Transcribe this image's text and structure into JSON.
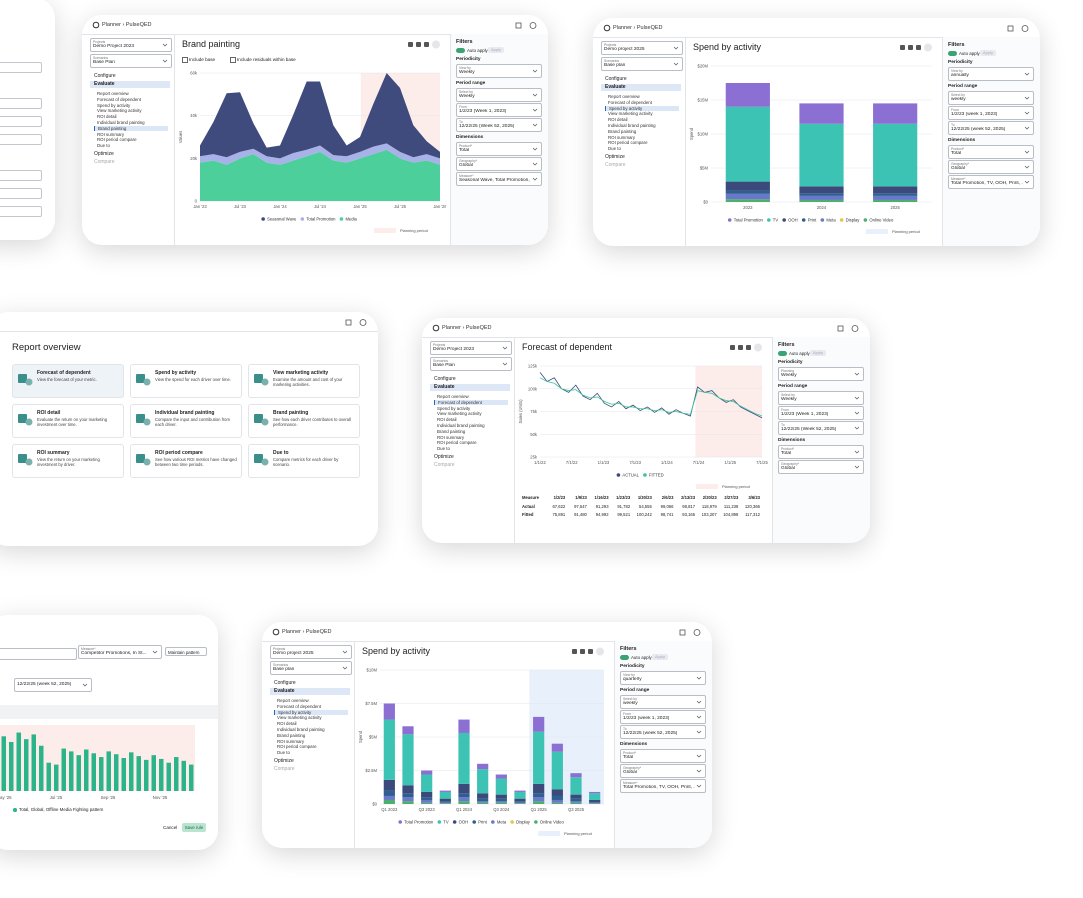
{
  "breadcrumb": "Planner › PulseQED",
  "labels": {
    "projects": "Projects",
    "scenarios": "Scenarios",
    "configure": "Configure",
    "evaluate": "Evaluate",
    "optimize": "Optimize",
    "compare": "Compare",
    "filters": "Filters",
    "auto_apply": "Auto apply",
    "apply": "Apply",
    "periodicity": "Periodicity",
    "period_range": "Period range",
    "select_by": "Select by",
    "from": "From",
    "to": "To",
    "dimensions": "Dimensions",
    "product": "Product*",
    "geography": "Geography*",
    "measure": "Measure*",
    "planning_period": "Planning period"
  },
  "nav": [
    "Report overview",
    "Forecast of dependent",
    "Spend by activity",
    "View marketing activity",
    "ROI detail",
    "Individual brand painting",
    "Brand painting",
    "ROI summary",
    "ROI period compare",
    "Due to"
  ],
  "cards": [
    {
      "title": "Brand painting",
      "project": "Demo Project 2023",
      "scenario": "Base Plan",
      "active": 6,
      "view_by_label": "View by",
      "view_by": "Weekly",
      "select_by": "Weekly",
      "from": "1/2/23 (Week 1, 2023)",
      "to": "12/22/25 (Week 52, 2025)",
      "product": "Total",
      "geography": "Global",
      "measure": "Seasonal Wave, Total Promotion, ...",
      "checkboxes": [
        "Include base",
        "Include residuals within base"
      ],
      "chart_data": {
        "type": "area",
        "y_label": "Values",
        "ylim": [
          0,
          60000
        ],
        "yticks": [
          0,
          {
            "value": 20000,
            "label": "20k"
          },
          {
            "value": 40000,
            "label": "40k"
          },
          {
            "value": 60000,
            "label": "60k"
          }
        ],
        "x_labels": [
          "Jan '23",
          "Jul '23",
          "Jan '24",
          "Jul '24",
          "Jan '25",
          "Jul '25",
          "Jan '26"
        ],
        "series": [
          {
            "name": "Seasonal Wave",
            "color": "#3f4b7c",
            "values": [
              5000,
              15000,
              30000,
              28000,
              12000,
              4000,
              6000,
              18000,
              32000,
              30000,
              14000,
              5000,
              7000,
              20000,
              33000,
              30000,
              15000,
              6000,
              3000
            ]
          },
          {
            "name": "Total Promotion",
            "color": "#a9b2e8",
            "values": [
              3000,
              3000,
              3500,
              3000,
              2500,
              3000,
              3000,
              3500,
              3000,
              3000,
              2500,
              3000,
              3000,
              3500,
              3000,
              3000,
              2500,
              3000,
              3000
            ]
          },
          {
            "name": "Media",
            "color": "#4ccf9b",
            "values": [
              18000,
              19000,
              17000,
              20000,
              22000,
              18000,
              17000,
              19000,
              21000,
              23000,
              19000,
              18000,
              20000,
              22000,
              24000,
              20000,
              18000,
              19000,
              17000
            ]
          }
        ]
      }
    },
    {
      "title": "Spend by activity",
      "project": "Demo project 2025",
      "scenario": "Base plan",
      "active": 2,
      "view_by_label": "View by",
      "view_by": "annually",
      "select_by": "weekly",
      "from": "1/2/23 (week 1, 2023)",
      "to": "12/22/25 (week 52, 2025)",
      "product": "Total",
      "geography": "Global",
      "measure": "Total Promotion, TV, OOH, Print, ...",
      "chart_data": {
        "type": "stacked_bar",
        "y_label": "Spend",
        "ylim": [
          0,
          20000000
        ],
        "yticks": [
          {
            "value": 0,
            "label": "$0"
          },
          {
            "value": 5000000,
            "label": "$5M"
          },
          {
            "value": 10000000,
            "label": "$10M"
          },
          {
            "value": 15000000,
            "label": "$15M"
          },
          {
            "value": 20000000,
            "label": "$20M"
          }
        ],
        "categories": [
          "2023",
          "2024",
          "2025"
        ],
        "series": [
          {
            "name": "Total Promotion",
            "color": "#8c6fd3",
            "values": [
              3500000,
              3000000,
              3000000
            ]
          },
          {
            "name": "TV",
            "color": "#3cc3b4",
            "values": [
              11000000,
              9200000,
              9200000
            ]
          },
          {
            "name": "OOH",
            "color": "#3b4a7a",
            "values": [
              1300000,
              1000000,
              1000000
            ]
          },
          {
            "name": "Print",
            "color": "#2f5e91",
            "values": [
              500000,
              400000,
              400000
            ]
          },
          {
            "name": "Meta",
            "color": "#6a78c9",
            "values": [
              800000,
              600000,
              600000
            ]
          },
          {
            "name": "Display",
            "color": "#e3c64a",
            "values": [
              0,
              0,
              0
            ]
          },
          {
            "name": "Online Video",
            "color": "#4caf6e",
            "values": [
              400000,
              300000,
              300000
            ]
          }
        ]
      }
    },
    {
      "title": "Forecast of dependent",
      "project": "Demo Project 2023",
      "scenario": "Base Plan",
      "active": 1,
      "view_by_label": "Planning",
      "view_by": "Weekly",
      "select_by": "Weekly",
      "from": "1/2/23 (Week 1, 2023)",
      "to": "12/22/25 (Week 52, 2025)",
      "product": "Total",
      "geography": "Global",
      "chart_data": {
        "type": "line",
        "y_label": "Sales (Units)",
        "ylim": [
          25000,
          125000
        ],
        "yticks": [
          {
            "value": 25000,
            "label": "25k"
          },
          {
            "value": 50000,
            "label": "50k"
          },
          {
            "value": 75000,
            "label": "75k"
          },
          {
            "value": 100000,
            "label": "100k"
          },
          {
            "value": 125000,
            "label": "125k"
          }
        ],
        "x_labels": [
          "1/1/22",
          "7/1/22",
          "1/1/23",
          "7/1/23",
          "1/1/24",
          "7/1/24",
          "1/1/25",
          "7/1/25"
        ],
        "series": [
          {
            "name": "ACTUAL",
            "color": "#3b4a7a",
            "values": [
              118000,
              108000,
              112000,
              100000,
              96000,
              104000,
              92000,
              88000,
              95000,
              84000,
              80000,
              86000,
              78000,
              82000,
              76000,
              80000,
              74000,
              79000,
              72000,
              77000,
              73000,
              70000,
              102000,
              96000,
              98000,
              90000,
              85000,
              88000,
              80000,
              76000,
              72000,
              68000
            ]
          },
          {
            "name": "FITTED",
            "color": "#3cc39a",
            "values": [
              112000,
              108000,
              106000,
              100000,
              98000,
              99000,
              93000,
              90000,
              91000,
              86000,
              83000,
              84000,
              80000,
              80000,
              78000,
              78000,
              76000,
              77000,
              74000,
              75000,
              73000,
              72000,
              98000,
              96000,
              95000,
              90000,
              87000,
              86000,
              81000,
              77000,
              73000,
              70000
            ]
          }
        ]
      },
      "table": {
        "header": [
          "Measure",
          "1/2/23",
          "1/9/23",
          "1/16/23",
          "1/23/23",
          "1/30/23",
          "2/6/23",
          "2/13/23",
          "2/20/23",
          "2/27/23",
          "3/6/23"
        ],
        "rows": [
          [
            "Actual",
            "67,622",
            "97,547",
            "91,293",
            "91,782",
            "54,555",
            "99,066",
            "98,817",
            "118,979",
            "111,238",
            "120,366"
          ],
          [
            "Fitted",
            "75,891",
            "91,480",
            "94,992",
            "99,521",
            "100,242",
            "98,741",
            "93,165",
            "103,207",
            "104,898",
            "117,312"
          ]
        ]
      }
    },
    {
      "title": "Spend by activity",
      "project": "Demo project 2025",
      "scenario": "Base plan",
      "active": 2,
      "view_by_label": "View by",
      "view_by": "quarterly",
      "select_by": "weekly",
      "from": "1/2/23 (week 1, 2023)",
      "to": "12/22/25 (week 52, 2025)",
      "product": "Total",
      "geography": "Global",
      "measure": "Total Promotion, TV, OOH, Print, ...",
      "chart_data": {
        "type": "stacked_bar",
        "y_label": "Spend",
        "ylim": [
          0,
          10000000
        ],
        "yticks": [
          {
            "value": 0,
            "label": "$0"
          },
          {
            "value": 2500000,
            "label": "$2.5M"
          },
          {
            "value": 5000000,
            "label": "$5M"
          },
          {
            "value": 7500000,
            "label": "$7.5M"
          },
          {
            "value": 10000000,
            "label": "$10M"
          }
        ],
        "categories": [
          "Q1 2023",
          null,
          "Q3 2023",
          null,
          "Q1 2024",
          null,
          "Q3 2024",
          null,
          "Q1 2025",
          null,
          "Q3 2025",
          null
        ],
        "series": [
          {
            "name": "Total Promotion",
            "color": "#8c6fd3",
            "values": [
              1200000,
              600000,
              300000,
              100000,
              1000000,
              400000,
              300000,
              100000,
              1100000,
              600000,
              300000,
              100000
            ]
          },
          {
            "name": "TV",
            "color": "#3cc3b4",
            "values": [
              4500000,
              3800000,
              1300000,
              500000,
              3800000,
              1800000,
              1200000,
              500000,
              3900000,
              2800000,
              1300000,
              500000
            ]
          },
          {
            "name": "OOH",
            "color": "#3b4a7a",
            "values": [
              800000,
              600000,
              400000,
              200000,
              700000,
              400000,
              300000,
              200000,
              700000,
              500000,
              300000,
              150000
            ]
          },
          {
            "name": "Print",
            "color": "#2f5e91",
            "values": [
              400000,
              300000,
              200000,
              100000,
              300000,
              200000,
              200000,
              100000,
              300000,
              300000,
              200000,
              50000
            ]
          },
          {
            "name": "Meta",
            "color": "#6a78c9",
            "values": [
              300000,
              300000,
              200000,
              50000,
              300000,
              100000,
              100000,
              50000,
              300000,
              200000,
              100000,
              50000
            ]
          },
          {
            "name": "Display",
            "color": "#e3c64a",
            "values": [
              0,
              0,
              0,
              0,
              0,
              0,
              0,
              0,
              0,
              0,
              0,
              0
            ]
          },
          {
            "name": "Online Video",
            "color": "#4caf6e",
            "values": [
              300000,
              200000,
              100000,
              50000,
              200000,
              100000,
              100000,
              50000,
              200000,
              100000,
              100000,
              50000
            ]
          }
        ]
      }
    }
  ],
  "report": {
    "title": "Report overview",
    "tiles": [
      {
        "title": "Forecast of dependent",
        "desc": "View the forecast of your metric."
      },
      {
        "title": "Spend by activity",
        "desc": "View the spend for each driver over time."
      },
      {
        "title": "View marketing activity",
        "desc": "Examine the amount and cost of your marketing activities."
      },
      {
        "title": "ROI detail",
        "desc": "Evaluate the return on your marketing investment over time."
      },
      {
        "title": "Individual brand painting",
        "desc": "Compare the input and contribution from each driver."
      },
      {
        "title": "Brand painting",
        "desc": "See how each driver contributes to overall performance."
      },
      {
        "title": "ROI summary",
        "desc": "View the return on your marketing investment by driver."
      },
      {
        "title": "ROI period compare",
        "desc": "See how various ROI metrics have changed between two time periods."
      },
      {
        "title": "Due to",
        "desc": "Compare metrics for each driver by scenario."
      }
    ]
  },
  "rule": {
    "measure_label": "Measure*",
    "measure": "Competitor Promotions, In St...",
    "pattern": "Maintain pattern",
    "to": "12/22/25 (week 52, 2025)",
    "legend": "Total, Global, Offline Media Fighting pattern",
    "cancel": "Cancel",
    "save": "Save rule",
    "chart_data": {
      "type": "bar",
      "color": "#2bb38a",
      "ylim": [
        0,
        70
      ],
      "x_labels": [
        "May '25",
        "Jul '25",
        "Sep '25",
        "Nov '25"
      ],
      "values": [
        58,
        52,
        62,
        55,
        60,
        48,
        30,
        28,
        45,
        42,
        38,
        44,
        40,
        36,
        42,
        39,
        35,
        41,
        37,
        33,
        38,
        34,
        30,
        36,
        32,
        28
      ]
    }
  }
}
